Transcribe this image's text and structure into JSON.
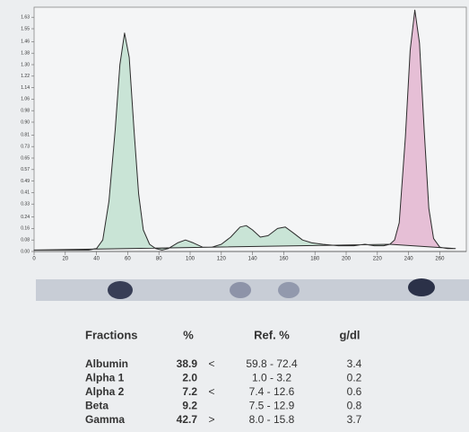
{
  "chart_data": {
    "type": "area",
    "series": [
      {
        "color": "#c9e4d6",
        "x": [
          0,
          20,
          35,
          40,
          44,
          48,
          52,
          55,
          58,
          61,
          64,
          67,
          70,
          74,
          78,
          82,
          86,
          92,
          97,
          102,
          108,
          114,
          120,
          126,
          132,
          136,
          140,
          145,
          150,
          156,
          161,
          166,
          172,
          178,
          185,
          195,
          205,
          212,
          218,
          224,
          228
        ],
        "values": [
          0.01,
          0.01,
          0.01,
          0.02,
          0.08,
          0.35,
          0.85,
          1.3,
          1.52,
          1.35,
          0.85,
          0.4,
          0.15,
          0.05,
          0.02,
          0.01,
          0.02,
          0.06,
          0.08,
          0.06,
          0.03,
          0.03,
          0.05,
          0.1,
          0.17,
          0.18,
          0.15,
          0.1,
          0.11,
          0.16,
          0.17,
          0.13,
          0.08,
          0.06,
          0.05,
          0.04,
          0.04,
          0.05,
          0.04,
          0.04,
          0.05
        ]
      },
      {
        "color": "#e6bfd6",
        "x": [
          228,
          231,
          234,
          238,
          241,
          244,
          247,
          250,
          253,
          256,
          260,
          265,
          270
        ],
        "values": [
          0.05,
          0.08,
          0.2,
          0.8,
          1.4,
          1.68,
          1.45,
          0.85,
          0.3,
          0.09,
          0.03,
          0.02,
          0.02
        ]
      }
    ],
    "xlim": [
      0,
      277
    ],
    "ylim": [
      0,
      1.7
    ],
    "xticks": [
      0,
      20,
      40,
      60,
      80,
      100,
      120,
      140,
      160,
      180,
      200,
      220,
      240,
      260
    ],
    "yticks": [
      {
        "value": 0,
        "label": "0.00"
      },
      0.08,
      0.16,
      0.24,
      0.33,
      0.41,
      0.49,
      0.57,
      0.65,
      0.73,
      0.81,
      {
        "value": 0.9,
        "label": "0.90"
      },
      0.98,
      1.06,
      1.14,
      1.22,
      {
        "value": 1.3,
        "label": "1.30"
      },
      1.38,
      1.46,
      1.55,
      1.63
    ]
  },
  "table": {
    "headers": [
      "Fractions",
      "%",
      "Ref. %",
      "g/dl"
    ],
    "rows": [
      {
        "name": "Albumin",
        "pct": "38.9",
        "flag": "<",
        "ref": "59.8 - 72.4",
        "gdl": "3.4"
      },
      {
        "name": "Alpha 1",
        "pct": "2.0",
        "ref": "1.0 -  3.2",
        "gdl": "0.2"
      },
      {
        "name": "Alpha 2",
        "pct": "7.2",
        "flag": "<",
        "ref": "7.4 - 12.6",
        "gdl": "0.6"
      },
      {
        "name": "Beta",
        "pct": "9.2",
        "ref": "7.5 - 12.9",
        "gdl": "0.8"
      },
      {
        "name": "Gamma",
        "pct": "42.7",
        "flag": ">",
        "ref": "8.0 - 15.8",
        "gdl": "3.7"
      }
    ]
  }
}
